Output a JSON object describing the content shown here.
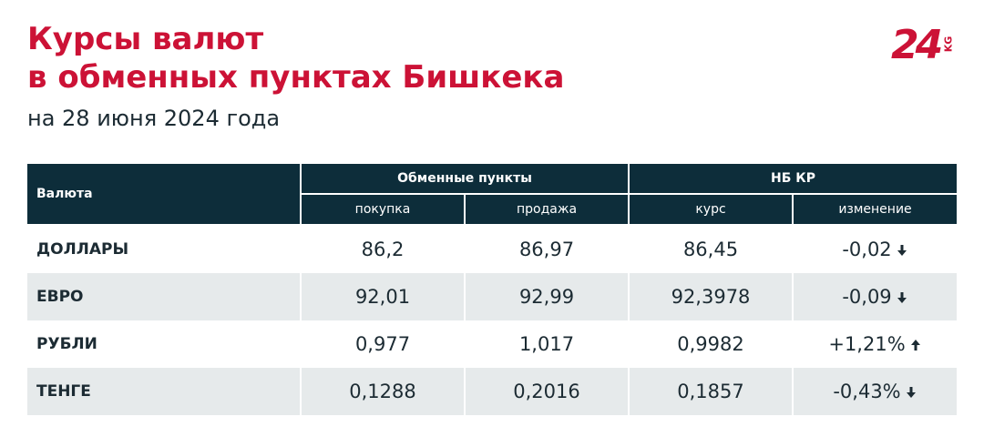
{
  "header": {
    "title_line1": "Курсы валют",
    "title_line2": "в обменных пунктах Бишкека",
    "subtitle": "на 28 июня 2024 года",
    "logo_number": "24",
    "logo_suffix": "KG"
  },
  "table": {
    "column_header": "Валюта",
    "groups": [
      "Обменные пункты",
      "НБ КР"
    ],
    "subcolumns": [
      "покупка",
      "продажа",
      "курс",
      "изменение"
    ],
    "rows": [
      [
        "ДОЛЛАРЫ",
        "86,2",
        "86,97",
        "86,45",
        "-0,02"
      ],
      [
        "ЕВРО",
        "92,01",
        "92,99",
        "92,3978",
        "-0,09"
      ],
      [
        "РУБЛИ",
        "0,977",
        "1,017",
        "0,9982",
        "+1,21%"
      ],
      [
        "ТЕНГЕ",
        "0,1288",
        "0,2016",
        "0,1857",
        "-0,43%"
      ]
    ]
  }
}
